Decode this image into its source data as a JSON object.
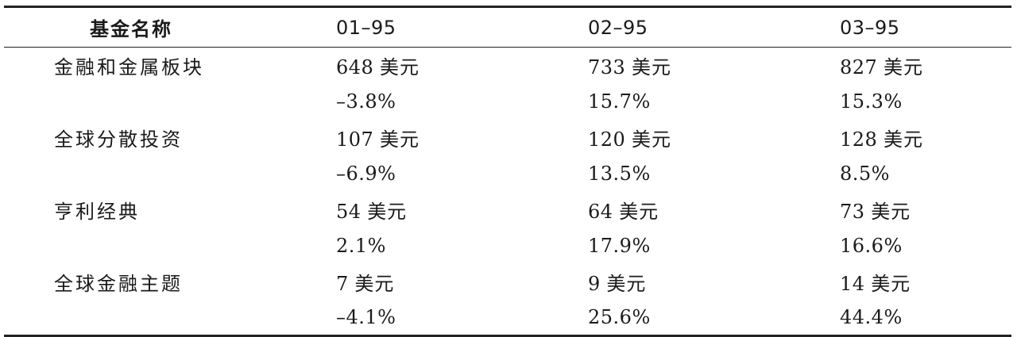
{
  "table": {
    "headers": {
      "name": "基金名称",
      "periods": [
        "01–95",
        "02–95",
        "03–95"
      ]
    },
    "funds": [
      {
        "name": "金融和金属板块",
        "values": [
          {
            "amount": "648",
            "unit": "美元"
          },
          {
            "amount": "733",
            "unit": "美元"
          },
          {
            "amount": "827",
            "unit": "美元"
          }
        ],
        "changes": [
          "–3.8%",
          "15.7%",
          "15.3%"
        ]
      },
      {
        "name": "全球分散投资",
        "values": [
          {
            "amount": "107",
            "unit": "美元"
          },
          {
            "amount": "120",
            "unit": "美元"
          },
          {
            "amount": "128",
            "unit": "美元"
          }
        ],
        "changes": [
          "–6.9%",
          "13.5%",
          "8.5%"
        ]
      },
      {
        "name": "亨利经典",
        "values": [
          {
            "amount": "54",
            "unit": "美元"
          },
          {
            "amount": "64",
            "unit": "美元"
          },
          {
            "amount": "73",
            "unit": "美元"
          }
        ],
        "changes": [
          "2.1%",
          "17.9%",
          "16.6%"
        ]
      },
      {
        "name": "全球金融主题",
        "values": [
          {
            "amount": "7",
            "unit": "美元"
          },
          {
            "amount": "9",
            "unit": "美元"
          },
          {
            "amount": "14",
            "unit": "美元"
          }
        ],
        "changes": [
          "–4.1%",
          "25.6%",
          "44.4%"
        ]
      }
    ]
  }
}
